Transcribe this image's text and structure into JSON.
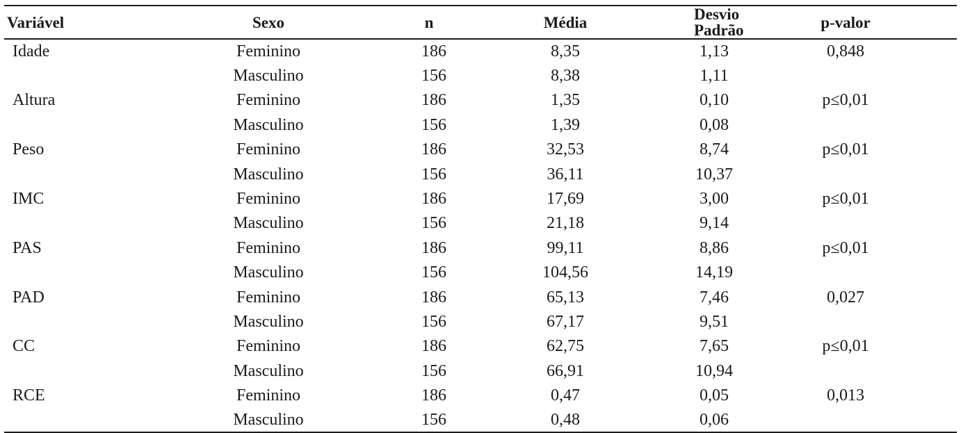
{
  "table": {
    "headers": {
      "variable": "Variável",
      "sex": "Sexo",
      "n": "n",
      "mean": "Média",
      "sd": "Desvio Padrão",
      "pvalue": "p-valor"
    },
    "rows": [
      {
        "variable": "Idade",
        "sex": "Feminino",
        "n": "186",
        "mean": "8,35",
        "sd": "1,13",
        "pvalue": "0,848"
      },
      {
        "variable": "",
        "sex": "Masculino",
        "n": "156",
        "mean": "8,38",
        "sd": "1,11",
        "pvalue": ""
      },
      {
        "variable": "Altura",
        "sex": "Feminino",
        "n": "186",
        "mean": "1,35",
        "sd": "0,10",
        "pvalue": "p≤0,01"
      },
      {
        "variable": "",
        "sex": "Masculino",
        "n": "156",
        "mean": "1,39",
        "sd": "0,08",
        "pvalue": ""
      },
      {
        "variable": "Peso",
        "sex": "Feminino",
        "n": "186",
        "mean": "32,53",
        "sd": "8,74",
        "pvalue": "p≤0,01"
      },
      {
        "variable": "",
        "sex": "Masculino",
        "n": "156",
        "mean": "36,11",
        "sd": "10,37",
        "pvalue": ""
      },
      {
        "variable": "IMC",
        "sex": "Feminino",
        "n": "186",
        "mean": "17,69",
        "sd": "3,00",
        "pvalue": "p≤0,01"
      },
      {
        "variable": "",
        "sex": "Masculino",
        "n": "156",
        "mean": "21,18",
        "sd": "9,14",
        "pvalue": ""
      },
      {
        "variable": "PAS",
        "sex": "Feminino",
        "n": "186",
        "mean": "99,11",
        "sd": "8,86",
        "pvalue": "p≤0,01"
      },
      {
        "variable": "",
        "sex": "Masculino",
        "n": "156",
        "mean": "104,56",
        "sd": "14,19",
        "pvalue": ""
      },
      {
        "variable": "PAD",
        "sex": "Feminino",
        "n": "186",
        "mean": "65,13",
        "sd": "7,46",
        "pvalue": "0,027"
      },
      {
        "variable": "",
        "sex": "Masculino",
        "n": "156",
        "mean": "67,17",
        "sd": "9,51",
        "pvalue": ""
      },
      {
        "variable": "CC",
        "sex": "Feminino",
        "n": "186",
        "mean": "62,75",
        "sd": "7,65",
        "pvalue": "p≤0,01"
      },
      {
        "variable": "",
        "sex": "Masculino",
        "n": "156",
        "mean": "66,91",
        "sd": "10,94",
        "pvalue": ""
      },
      {
        "variable": "RCE",
        "sex": "Feminino",
        "n": "186",
        "mean": "0,47",
        "sd": "0,05",
        "pvalue": "0,013"
      },
      {
        "variable": "",
        "sex": "Masculino",
        "n": "156",
        "mean": "0,48",
        "sd": "0,06",
        "pvalue": ""
      }
    ]
  }
}
